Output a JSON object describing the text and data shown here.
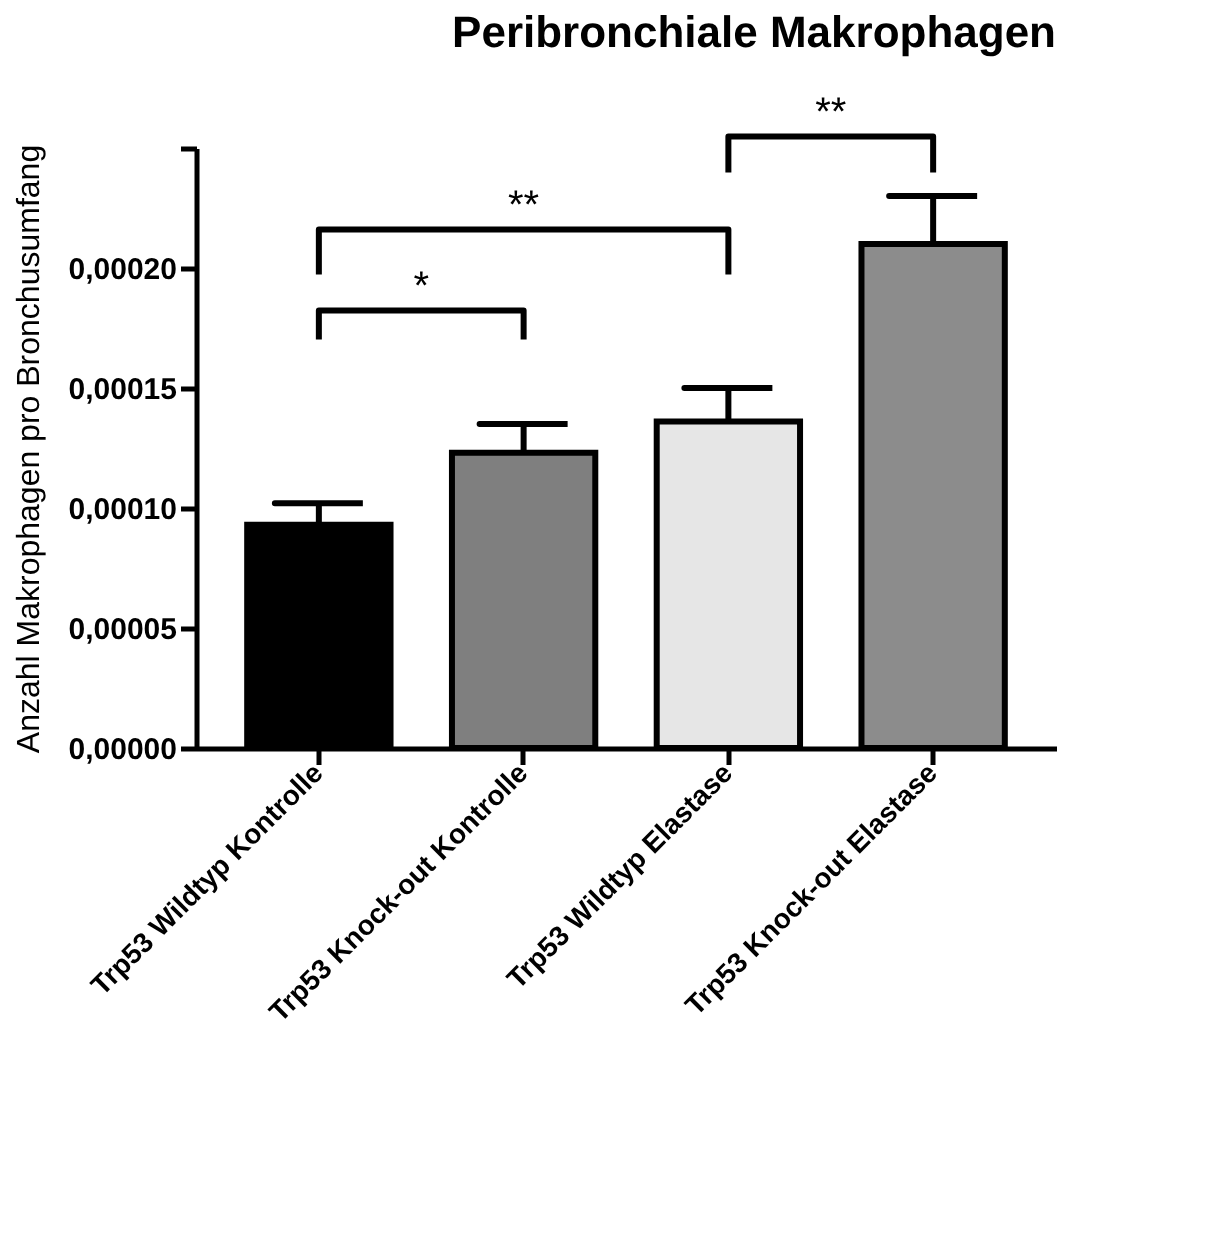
{
  "chart_data": {
    "type": "bar",
    "title": "Peribronchiale Makrophagen",
    "ylabel": "Anzahl Makrophagen pro Bronchusumfang",
    "categories": [
      "Trp53 Wildtyp Kontrolle",
      "Trp53 Knock-out Kontrolle",
      "Trp53 Wildtyp Elastase",
      "Trp53 Knock-out Elastase"
    ],
    "values": [
      9.3e-05,
      0.000123,
      0.000136,
      0.00021
    ],
    "errors": [
      [
        9.3e-05,
        0.000102
      ],
      [
        0.000123,
        0.000135
      ],
      [
        0.000136,
        0.00015
      ],
      [
        0.00021,
        0.00023
      ]
    ],
    "colors": [
      "#000000",
      "#7f7f7f",
      "#e6e6e6",
      "#8c8c8c"
    ],
    "ylim": [
      0,
      0.00025
    ],
    "yticks": [
      {
        "value": 0,
        "label": "0,00000"
      },
      {
        "value": 5e-05,
        "label": "0,00005"
      },
      {
        "value": 0.0001,
        "label": "0,00010"
      },
      {
        "value": 0.00015,
        "label": "0,00015"
      },
      {
        "value": 0.0002,
        "label": "0,00020"
      },
      {
        "value": 0.00025,
        "label": null
      }
    ],
    "annotations": [
      "*",
      "**",
      "**"
    ],
    "grid": false
  }
}
